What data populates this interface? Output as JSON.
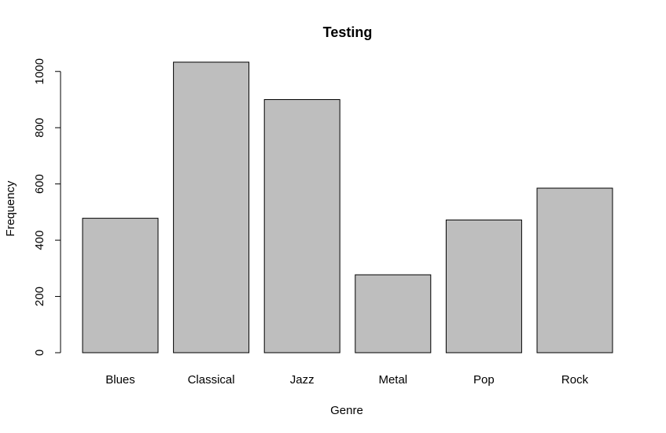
{
  "chart_data": {
    "type": "bar",
    "title": "Testing",
    "xlabel": "Genre",
    "ylabel": "Frequency",
    "categories": [
      "Blues",
      "Classical",
      "Jazz",
      "Metal",
      "Pop",
      "Rock"
    ],
    "values": [
      478,
      1033,
      900,
      277,
      472,
      585
    ],
    "yticks": [
      0,
      200,
      400,
      600,
      800,
      1000
    ],
    "ytick_labels": [
      "0",
      "200",
      "400",
      "600",
      "800",
      "1000"
    ],
    "ylim": [
      0,
      1033
    ],
    "grid": false,
    "legend": "none",
    "bar_fill": "#bebebe",
    "bar_stroke": "#000000"
  }
}
